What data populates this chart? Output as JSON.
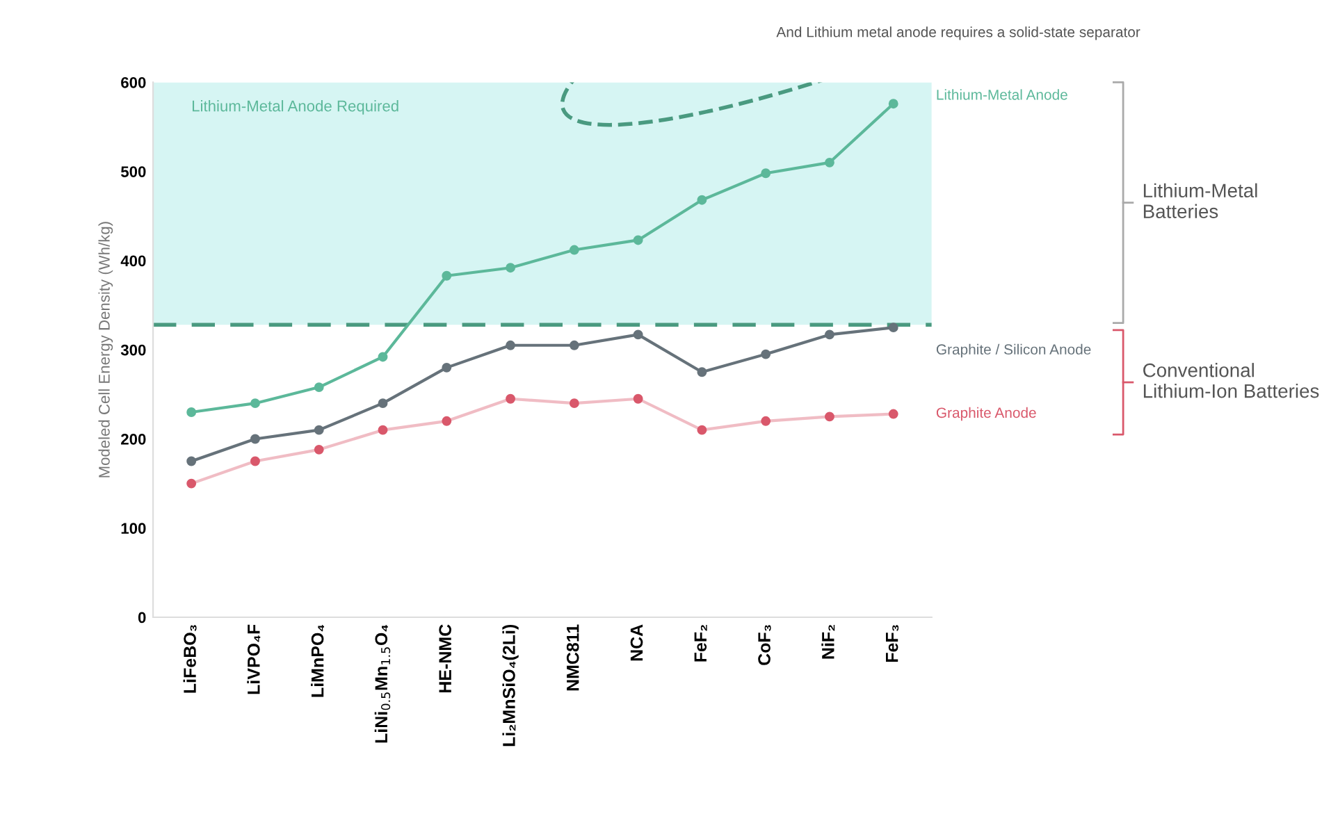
{
  "chart_data": {
    "type": "line",
    "subtitle": "And Lithium metal anode requires a solid-state separator",
    "ylabel": "Modeled Cell Energy Density (Wh/kg)",
    "categories": [
      "LiFeBO₃",
      "LiVPO₄F",
      "LiMnPO₄",
      "LiNi$_{0.5}$Mn$_{1.5}$O₄",
      "HE-NMC",
      "Li₂MnSiO₄(2Li)",
      "NMC811",
      "NCA",
      "FeF₂",
      "CoF₃",
      "NiF₂",
      "FeF₃"
    ],
    "series": [
      {
        "name": "Lithium-Metal Anode",
        "color": "#5cb89a",
        "values": [
          230,
          240,
          258,
          292,
          383,
          392,
          412,
          423,
          468,
          498,
          510,
          576
        ]
      },
      {
        "name": "Graphite / Silicon Anode",
        "color": "#66727a",
        "values": [
          175,
          200,
          210,
          240,
          280,
          305,
          305,
          317,
          275,
          295,
          317,
          325
        ]
      },
      {
        "name": "Graphite Anode",
        "color": "#d9586b",
        "values": [
          150,
          175,
          188,
          210,
          220,
          245,
          240,
          245,
          210,
          220,
          225,
          228
        ]
      }
    ],
    "ylim": [
      0,
      600
    ],
    "yticks": [
      0,
      100,
      200,
      300,
      400,
      500,
      600
    ],
    "ref_lines": [
      {
        "axis": "y",
        "value": 328,
        "color": "#4a9a80",
        "line_style": "dashed"
      }
    ],
    "bands": [
      {
        "axis": "y",
        "from": 328,
        "to": 600,
        "label": "Lithium-Metal Anode Required",
        "color": "#d6f5f3"
      }
    ],
    "annotations": [
      "Lithium-Metal Batteries",
      "Conventional Lithium-Ion Batteries"
    ],
    "marker": "circle",
    "line_style": "solid",
    "grid": false,
    "legend": false
  }
}
